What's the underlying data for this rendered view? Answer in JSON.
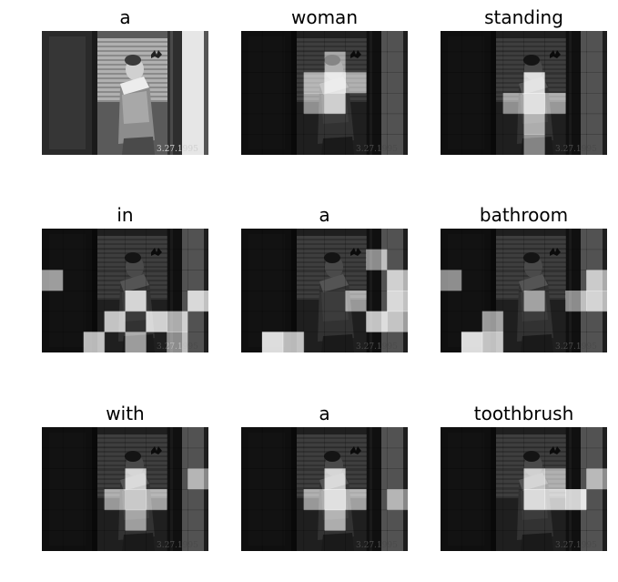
{
  "caption_words": [
    "a",
    "woman",
    "standing",
    "in",
    "a",
    "bathroom",
    "with",
    "a",
    "toothbrush"
  ],
  "photo_date_stamp": "3.27.1995",
  "colors": {
    "background": "#ffffff",
    "photo_tone": "grayscale"
  },
  "attention_maps": [
    {
      "word": "a",
      "mode": "photo"
    },
    {
      "word": "woman",
      "mode": "attention",
      "hot": [
        [
          4,
          2,
          1.0
        ],
        [
          4,
          3,
          0.8
        ],
        [
          3,
          2,
          0.55
        ],
        [
          5,
          2,
          0.5
        ],
        [
          3,
          3,
          0.45
        ],
        [
          4,
          1,
          0.45
        ]
      ]
    },
    {
      "word": "standing",
      "mode": "attention",
      "hot": [
        [
          4,
          2,
          0.9
        ],
        [
          4,
          3,
          0.95
        ],
        [
          4,
          4,
          0.55
        ],
        [
          3,
          3,
          0.45
        ],
        [
          5,
          3,
          0.5
        ],
        [
          4,
          5,
          0.4
        ]
      ]
    },
    {
      "word": "in",
      "mode": "attention",
      "hot": [
        [
          4,
          3,
          0.85
        ],
        [
          3,
          4,
          0.8
        ],
        [
          5,
          4,
          0.9
        ],
        [
          6,
          4,
          0.7
        ],
        [
          7,
          3,
          0.8
        ],
        [
          2,
          5,
          0.8
        ],
        [
          0,
          2,
          0.6
        ],
        [
          4,
          5,
          0.55
        ],
        [
          6,
          5,
          0.5
        ]
      ]
    },
    {
      "word": "a",
      "mode": "attention",
      "hot": [
        [
          1,
          5,
          1.0
        ],
        [
          2,
          5,
          0.8
        ],
        [
          7,
          2,
          0.7
        ],
        [
          7,
          3,
          0.8
        ],
        [
          6,
          4,
          0.85
        ],
        [
          6,
          1,
          0.5
        ],
        [
          7,
          4,
          0.55
        ],
        [
          5,
          3,
          0.5
        ]
      ]
    },
    {
      "word": "bathroom",
      "mode": "attention",
      "hot": [
        [
          1,
          5,
          1.0
        ],
        [
          2,
          5,
          0.85
        ],
        [
          2,
          4,
          0.6
        ],
        [
          7,
          3,
          0.75
        ],
        [
          7,
          2,
          0.65
        ],
        [
          6,
          3,
          0.5
        ],
        [
          0,
          2,
          0.5
        ],
        [
          4,
          3,
          0.4
        ]
      ]
    },
    {
      "word": "with",
      "mode": "attention",
      "hot": [
        [
          4,
          2,
          0.8
        ],
        [
          4,
          3,
          0.75
        ],
        [
          3,
          3,
          0.5
        ],
        [
          5,
          3,
          0.55
        ],
        [
          4,
          4,
          0.45
        ],
        [
          7,
          2,
          0.4
        ]
      ]
    },
    {
      "word": "a",
      "mode": "attention",
      "hot": [
        [
          4,
          2,
          0.8
        ],
        [
          4,
          3,
          0.95
        ],
        [
          5,
          3,
          0.55
        ],
        [
          3,
          3,
          0.5
        ],
        [
          4,
          4,
          0.55
        ],
        [
          7,
          3,
          0.4
        ]
      ]
    },
    {
      "word": "toothbrush",
      "mode": "attention",
      "hot": [
        [
          4,
          2,
          0.75
        ],
        [
          4,
          3,
          0.9
        ],
        [
          5,
          3,
          0.85
        ],
        [
          6,
          3,
          0.95
        ],
        [
          5,
          2,
          0.5
        ],
        [
          7,
          2,
          0.45
        ]
      ]
    }
  ]
}
